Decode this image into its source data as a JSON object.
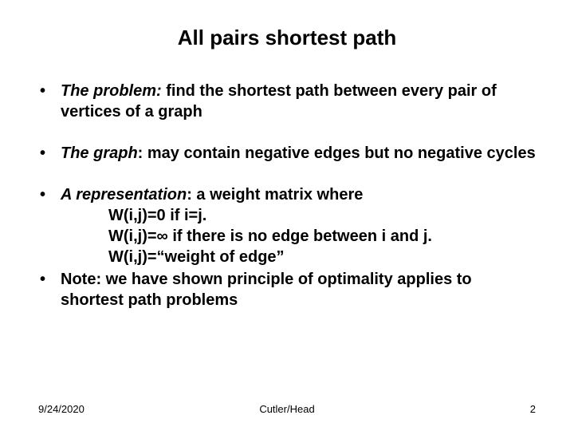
{
  "title": "All pairs shortest path",
  "bullets": {
    "b1_em": "The problem:",
    "b1_rest": " find the shortest path between every pair of vertices of a graph",
    "b2_em": "The graph",
    "b2_rest": ": may contain negative edges but no negative cycles",
    "b3_em": "A representation",
    "b3_rest": ": a weight matrix where",
    "b3_s1": "W(i,j)=0 if i=j.",
    "b3_s2": "W(i,j)=∞ if there is no edge between i and j.",
    "b3_s3": "W(i,j)=“weight of edge”",
    "b4": "Note: we have shown principle of optimality applies to shortest path problems"
  },
  "footer": {
    "date": "9/24/2020",
    "author": "Cutler/Head",
    "page": "2"
  },
  "style": {
    "background_color": "#ffffff",
    "text_color": "#000000",
    "title_fontsize": 26,
    "body_fontsize": 20,
    "footer_fontsize": 13,
    "font_family": "Arial"
  }
}
